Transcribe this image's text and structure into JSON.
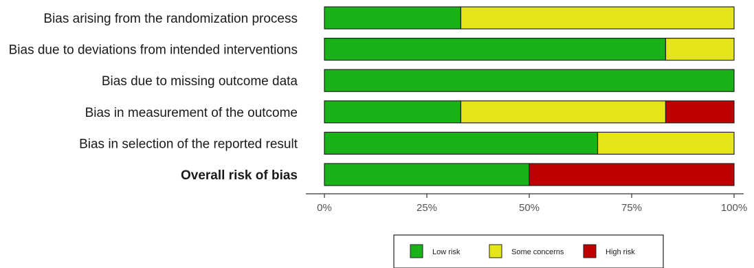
{
  "chart_data": {
    "type": "bar",
    "orientation": "horizontal",
    "stacked": true,
    "categories": [
      "Bias arising from the randomization process",
      "Bias due to deviations from intended interventions",
      "Bias due to missing outcome data",
      "Bias in measurement of the outcome",
      "Bias in selection of the reported result",
      "Overall risk of bias"
    ],
    "bold_categories": [
      "Overall risk of bias"
    ],
    "series": [
      {
        "name": "Low risk",
        "color": "#19b219",
        "values": [
          33.3,
          83.3,
          100,
          33.3,
          66.7,
          50
        ]
      },
      {
        "name": "Some concerns",
        "color": "#e5e519",
        "values": [
          66.7,
          16.7,
          0,
          50,
          33.3,
          0
        ]
      },
      {
        "name": "High risk",
        "color": "#bf0000",
        "values": [
          0,
          0,
          0,
          16.7,
          0,
          50
        ]
      }
    ],
    "xlim": [
      0,
      100
    ],
    "x_ticks": [
      0,
      25,
      50,
      75,
      100
    ],
    "x_tick_labels": [
      "0%",
      "25%",
      "50%",
      "75%",
      "100%"
    ],
    "xlabel": "",
    "ylabel": "",
    "legend": {
      "position": "bottom",
      "boxed": true
    },
    "grid": false
  }
}
